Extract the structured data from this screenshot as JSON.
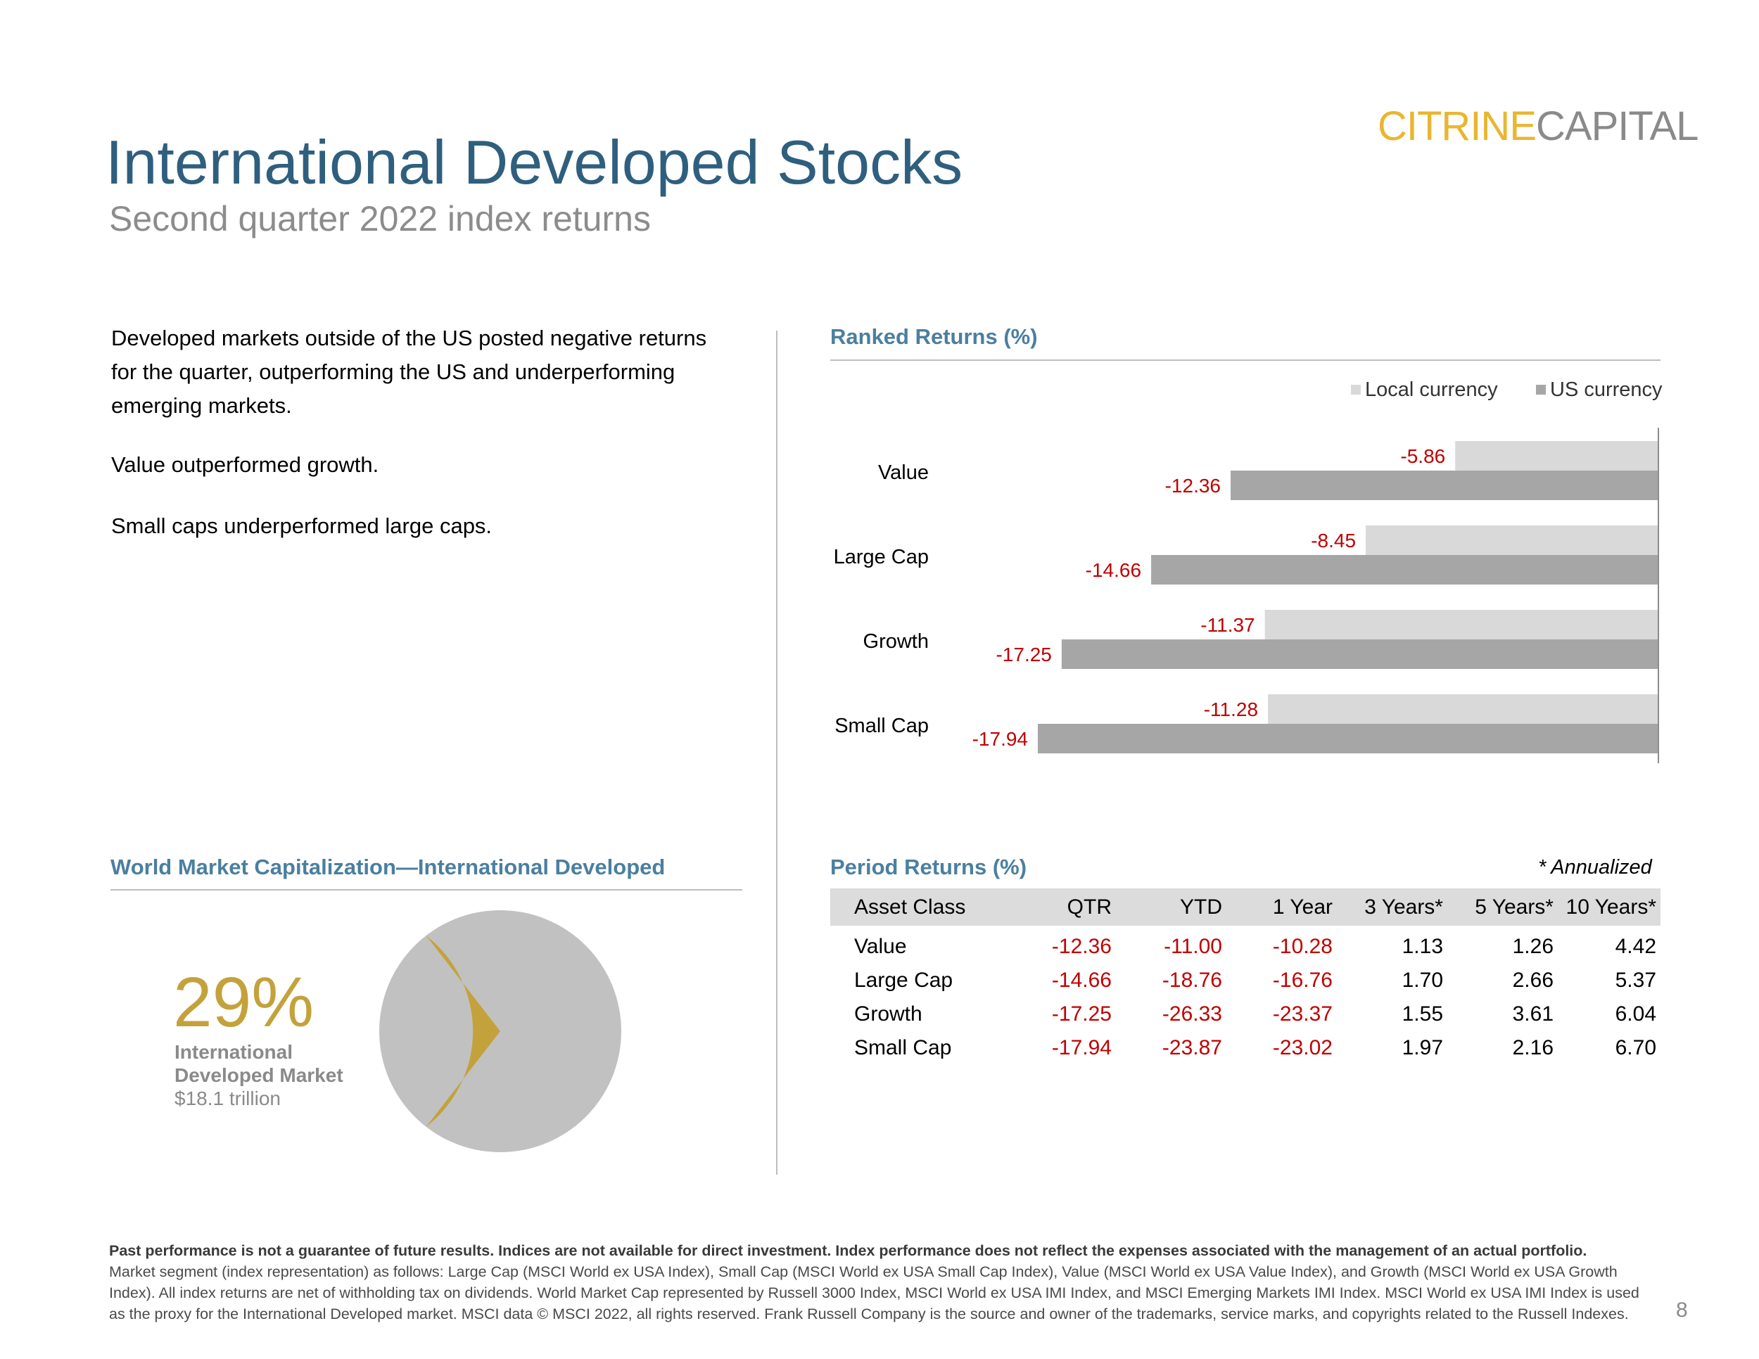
{
  "logo": {
    "part1": "CITRINE",
    "part2": "CAPITAL"
  },
  "title": "International Developed Stocks",
  "subtitle": "Second quarter 2022 index returns",
  "summary": [
    "Developed markets outside of the US posted negative returns for the quarter, outperforming the US and underperforming emerging markets.",
    "Value outperformed growth.",
    "Small caps underperformed large caps."
  ],
  "ranked": {
    "title": "Ranked Returns (%)"
  },
  "chart_data": {
    "type": "bar",
    "orientation": "horizontal",
    "title": "Ranked Returns (%)",
    "categories": [
      "Value",
      "Large Cap",
      "Growth",
      "Small Cap"
    ],
    "series": [
      {
        "name": "Local currency",
        "values": [
          -5.86,
          -8.45,
          -11.37,
          -11.28
        ],
        "color": "#d9d9d9"
      },
      {
        "name": "US currency",
        "values": [
          -12.36,
          -14.66,
          -17.25,
          -17.94
        ],
        "color": "#a6a6a6"
      }
    ],
    "xlim": [
      -17.94,
      0
    ],
    "legend": "top-right",
    "label_color": "#c00000"
  },
  "wmc": {
    "title": "World Market Capitalization—International Developed",
    "pct": "29%",
    "label1": "International",
    "label2": "Developed Market",
    "label3": "$18.1 trillion",
    "share": 0.29,
    "colors": {
      "slice": "#c4a23b",
      "rest": "#c1c1c1"
    }
  },
  "period": {
    "title": "Period Returns (%)",
    "note": "* Annualized",
    "headers": [
      "Asset Class",
      "QTR",
      "YTD",
      "1 Year",
      "3 Years*",
      "5 Years*",
      "10 Years*"
    ],
    "rows": [
      [
        "Value",
        "-12.36",
        "-11.00",
        "-10.28",
        "1.13",
        "1.26",
        "4.42"
      ],
      [
        "Large Cap",
        "-14.66",
        "-18.76",
        "-16.76",
        "1.70",
        "2.66",
        "5.37"
      ],
      [
        "Growth",
        "-17.25",
        "-26.33",
        "-23.37",
        "1.55",
        "3.61",
        "6.04"
      ],
      [
        "Small Cap",
        "-17.94",
        "-23.87",
        "-23.02",
        "1.97",
        "2.16",
        "6.70"
      ]
    ]
  },
  "footer": {
    "bold": "Past performance is not a guarantee of future results. Indices are not available for direct investment. Index performance does not reflect the expenses associated with the management of an actual portfolio.",
    "text": "Market segment (index representation) as follows: Large Cap (MSCI World ex USA Index), Small Cap (MSCI World ex USA Small Cap Index), Value (MSCI World ex USA Value Index), and Growth (MSCI World ex USA Growth Index). All index returns are net of withholding tax on dividends. World Market Cap represented by Russell 3000 Index, MSCI World ex USA IMI Index, and MSCI Emerging Markets IMI Index. MSCI World ex USA IMI Index is used as the proxy for the International Developed market. MSCI data © MSCI 2022, all rights reserved. Frank Russell Company is the source and owner of the trademarks, service marks, and copyrights related to the Russell Indexes."
  },
  "page_number": "8"
}
